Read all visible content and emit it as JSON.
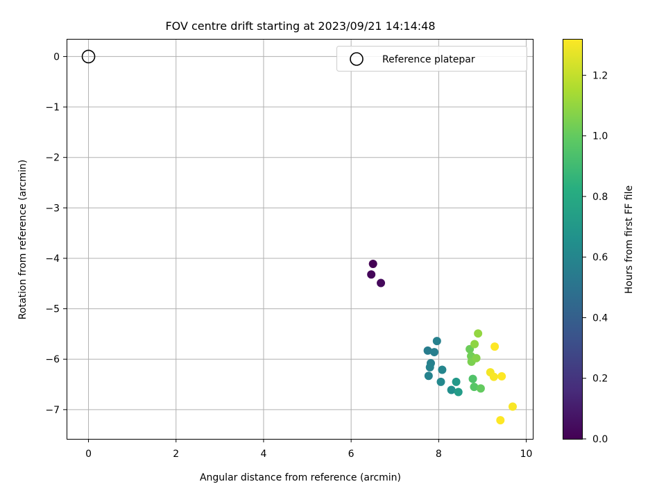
{
  "chart_data": {
    "type": "scatter",
    "title": "FOV centre drift starting at 2023/09/21 14:14:48",
    "xlabel": "Angular distance from reference (arcmin)",
    "ylabel": "Rotation from reference (arcmin)",
    "xlim": [
      -0.5,
      10.15
    ],
    "ylim": [
      -7.58,
      0.35
    ],
    "xticks": [
      0,
      2,
      4,
      6,
      8,
      10
    ],
    "yticks": [
      0,
      -1,
      -2,
      -3,
      -4,
      -5,
      -6,
      -7
    ],
    "grid": true,
    "legend": {
      "position": "top-right",
      "entries": [
        "Reference platepar"
      ]
    },
    "reference_point": {
      "x": 0,
      "y": 0,
      "marker": "open-circle",
      "color": "#000000"
    },
    "colorbar": {
      "label": "Hours from first FF file",
      "range": [
        0,
        1.32
      ],
      "ticks": [
        0.0,
        0.2,
        0.4,
        0.6,
        0.8,
        1.0,
        1.2
      ],
      "tick_labels": [
        "0.0",
        "0.2",
        "0.4",
        "0.6",
        "0.8",
        "1.0",
        "1.2"
      ],
      "colormap": "viridis"
    },
    "series": [
      {
        "points": [
          {
            "x": 6.5,
            "y": -4.11,
            "c": 0.0
          },
          {
            "x": 6.46,
            "y": -4.32,
            "c": 0.02
          },
          {
            "x": 6.68,
            "y": -4.49,
            "c": 0.03
          },
          {
            "x": 7.75,
            "y": -5.83,
            "c": 0.55
          },
          {
            "x": 7.9,
            "y": -5.86,
            "c": 0.56
          },
          {
            "x": 7.96,
            "y": -5.64,
            "c": 0.57
          },
          {
            "x": 7.82,
            "y": -6.08,
            "c": 0.57
          },
          {
            "x": 7.8,
            "y": -6.16,
            "c": 0.58
          },
          {
            "x": 7.77,
            "y": -6.33,
            "c": 0.58
          },
          {
            "x": 8.08,
            "y": -6.21,
            "c": 0.6
          },
          {
            "x": 8.05,
            "y": -6.45,
            "c": 0.61
          },
          {
            "x": 8.29,
            "y": -6.61,
            "c": 0.65
          },
          {
            "x": 8.4,
            "y": -6.45,
            "c": 0.7
          },
          {
            "x": 8.45,
            "y": -6.65,
            "c": 0.72
          },
          {
            "x": 8.78,
            "y": -6.39,
            "c": 0.95
          },
          {
            "x": 8.81,
            "y": -6.55,
            "c": 0.97
          },
          {
            "x": 8.96,
            "y": -6.58,
            "c": 1.0
          },
          {
            "x": 8.71,
            "y": -5.8,
            "c": 1.02
          },
          {
            "x": 8.74,
            "y": -5.94,
            "c": 1.03
          },
          {
            "x": 8.75,
            "y": -6.05,
            "c": 1.05
          },
          {
            "x": 8.86,
            "y": -5.98,
            "c": 1.07
          },
          {
            "x": 8.82,
            "y": -5.7,
            "c": 1.09
          },
          {
            "x": 8.9,
            "y": -5.49,
            "c": 1.1
          },
          {
            "x": 9.28,
            "y": -5.75,
            "c": 1.32
          },
          {
            "x": 9.18,
            "y": -6.26,
            "c": 1.3
          },
          {
            "x": 9.26,
            "y": -6.35,
            "c": 1.31
          },
          {
            "x": 9.44,
            "y": -6.34,
            "c": 1.32
          },
          {
            "x": 9.69,
            "y": -6.94,
            "c": 1.31
          },
          {
            "x": 9.41,
            "y": -7.21,
            "c": 1.32
          }
        ]
      }
    ]
  }
}
